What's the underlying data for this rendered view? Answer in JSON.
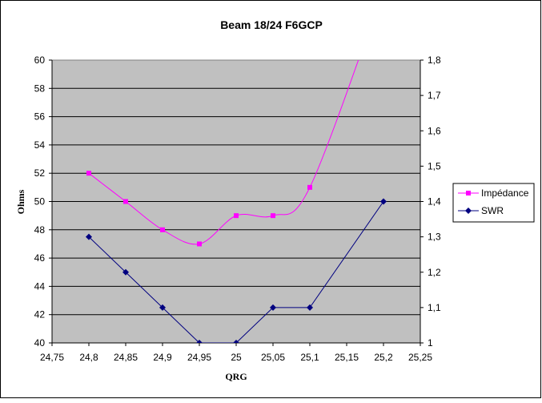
{
  "chart_data": {
    "type": "line",
    "title": "Beam 18/24 F6GCP",
    "xlabel": "QRG",
    "ylabel": "Ohms",
    "y2label": "",
    "xlim": [
      24.75,
      25.25
    ],
    "ylim": [
      40,
      60
    ],
    "y2lim": [
      1,
      1.8
    ],
    "x_ticks": [
      "24,75",
      "24,8",
      "24,85",
      "24,9",
      "24,95",
      "25",
      "25,05",
      "25,1",
      "25,15",
      "25,2",
      "25,25"
    ],
    "y_ticks": [
      "40",
      "42",
      "44",
      "46",
      "48",
      "50",
      "52",
      "54",
      "56",
      "58",
      "60"
    ],
    "y2_ticks": [
      "1",
      "1,1",
      "1,2",
      "1,3",
      "1,4",
      "1,5",
      "1,6",
      "1,7",
      "1,8"
    ],
    "grid": "horizontal",
    "legend_position": "right",
    "series": [
      {
        "name": "Impédance",
        "axis": "left",
        "color": "#ff00ff",
        "marker": "square",
        "x": [
          24.8,
          24.85,
          24.9,
          24.95,
          25.0,
          25.05,
          25.1,
          25.2
        ],
        "values": [
          52,
          50,
          48,
          47,
          49,
          49,
          51,
          65
        ]
      },
      {
        "name": "SWR",
        "axis": "right",
        "color": "#000080",
        "marker": "diamond",
        "x": [
          24.8,
          24.85,
          24.9,
          24.95,
          25.0,
          25.05,
          25.1,
          25.2
        ],
        "values": [
          1.3,
          1.2,
          1.1,
          1.0,
          1.0,
          1.1,
          1.1,
          1.4
        ]
      }
    ],
    "colors": {
      "plot_area": "#c0c0c0",
      "border": "#000000"
    }
  }
}
